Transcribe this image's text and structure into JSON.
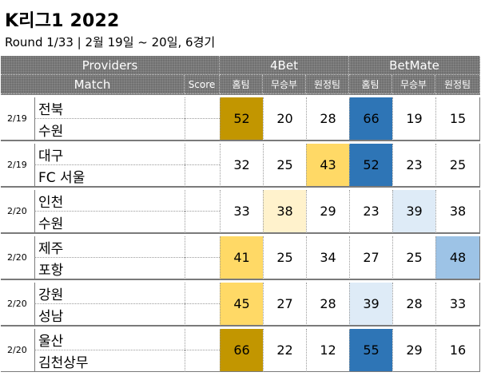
{
  "title": "K리그1 2022",
  "subtitle": "Round 1/33 | 2월 19일 ~ 20일, 6경기",
  "header": {
    "providers": "Providers",
    "provider_a": "4Bet",
    "provider_b": "BetMate",
    "match": "Match",
    "score": "Score",
    "home": "홈팀",
    "draw": "무승부",
    "away": "원정팀"
  },
  "colors": {
    "gold_dark": "#c29600",
    "gold": "#ffd966",
    "gold_light": "#fff2cc",
    "blue_dark": "#2e75b6",
    "blue": "#9dc3e6",
    "blue_light": "#deebf7"
  },
  "matches": [
    {
      "date": "2/19",
      "home": "전북",
      "away": "수원",
      "score_home": "",
      "score_away": "",
      "p1": [
        52,
        20,
        28
      ],
      "p2": [
        66,
        19,
        15
      ],
      "p1_hl": [
        "gold_dark",
        null,
        null
      ],
      "p2_hl": [
        "blue_dark",
        null,
        null
      ]
    },
    {
      "date": "2/19",
      "home": "대구",
      "away": "FC 서울",
      "score_home": "",
      "score_away": "",
      "p1": [
        32,
        25,
        43
      ],
      "p2": [
        52,
        23,
        25
      ],
      "p1_hl": [
        null,
        null,
        "gold"
      ],
      "p2_hl": [
        "blue_dark",
        null,
        null
      ]
    },
    {
      "date": "2/20",
      "home": "인천",
      "away": "수원",
      "score_home": "",
      "score_away": "",
      "p1": [
        33,
        38,
        29
      ],
      "p2": [
        23,
        39,
        38
      ],
      "p1_hl": [
        null,
        "gold_light",
        null
      ],
      "p2_hl": [
        null,
        "blue_light",
        null
      ]
    },
    {
      "date": "2/20",
      "home": "제주",
      "away": "포항",
      "score_home": "",
      "score_away": "",
      "p1": [
        41,
        25,
        34
      ],
      "p2": [
        27,
        25,
        48
      ],
      "p1_hl": [
        "gold",
        null,
        null
      ],
      "p2_hl": [
        null,
        null,
        "blue"
      ]
    },
    {
      "date": "2/20",
      "home": "강원",
      "away": "성남",
      "score_home": "",
      "score_away": "",
      "p1": [
        45,
        27,
        28
      ],
      "p2": [
        39,
        28,
        33
      ],
      "p1_hl": [
        "gold",
        null,
        null
      ],
      "p2_hl": [
        "blue_light",
        null,
        null
      ]
    },
    {
      "date": "2/20",
      "home": "울산",
      "away": "김천상무",
      "score_home": "",
      "score_away": "",
      "p1": [
        66,
        22,
        12
      ],
      "p2": [
        55,
        29,
        16
      ],
      "p1_hl": [
        "gold_dark",
        null,
        null
      ],
      "p2_hl": [
        "blue_dark",
        null,
        null
      ]
    }
  ]
}
